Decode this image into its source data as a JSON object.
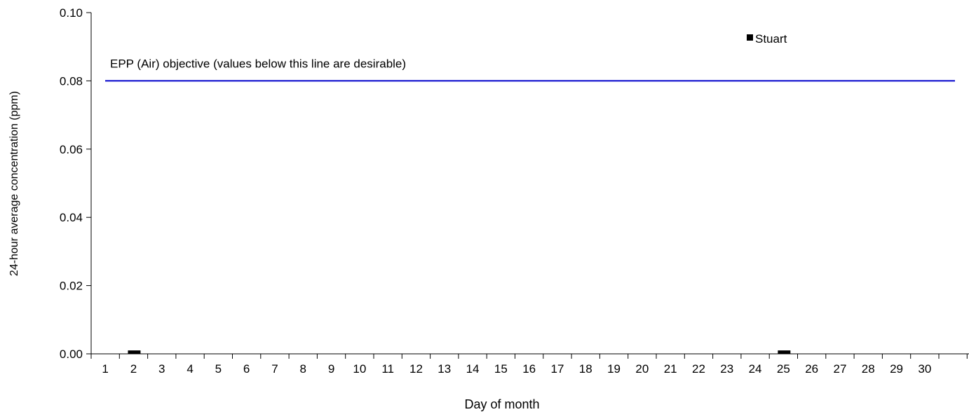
{
  "chart_data": {
    "type": "bar",
    "title": "",
    "xlabel": "Day of month",
    "ylabel": "24-hour average concentration (ppm)",
    "ylim": [
      0,
      0.1
    ],
    "yticks": [
      "0.00",
      "0.02",
      "0.04",
      "0.06",
      "0.08",
      "0.10"
    ],
    "ytick_values": [
      0,
      0.02,
      0.04,
      0.06,
      0.08,
      0.1
    ],
    "categories": [
      "1",
      "2",
      "3",
      "4",
      "5",
      "6",
      "7",
      "8",
      "9",
      "10",
      "11",
      "12",
      "13",
      "14",
      "15",
      "16",
      "17",
      "18",
      "19",
      "20",
      "21",
      "22",
      "23",
      "24",
      "25",
      "26",
      "27",
      "28",
      "29",
      "30"
    ],
    "series": [
      {
        "name": "Stuart",
        "color": "#000000",
        "values": [
          0,
          0.001,
          0,
          0,
          0,
          0,
          0,
          0,
          0,
          0,
          0,
          0,
          0,
          0,
          0,
          0,
          0,
          0,
          0,
          0,
          0,
          0,
          0,
          0,
          0.001,
          0,
          0,
          0,
          0,
          0
        ]
      }
    ],
    "reference_line": {
      "value": 0.08,
      "label": "EPP (Air) objective (values below this line are desirable)",
      "color": "#0000cc"
    },
    "legend": {
      "placement": "top-right",
      "entries": [
        "Stuart"
      ]
    },
    "grid": false
  }
}
